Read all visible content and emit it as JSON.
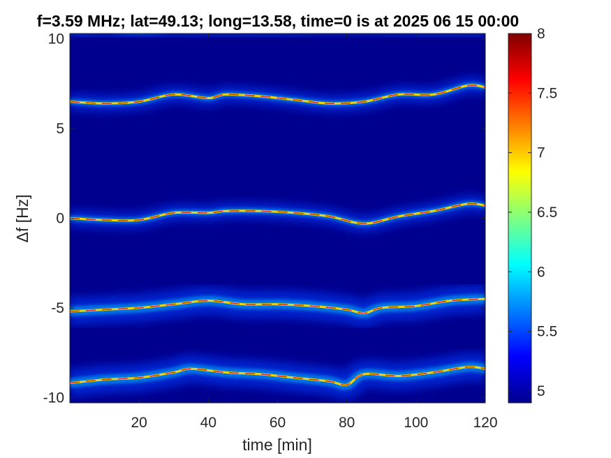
{
  "chart_data": {
    "type": "heatmap",
    "title": "f=3.59 MHz;  lat=49.13; long=13.58, time=0 is at 2025 06 15 00:00",
    "xlabel": "time [min]",
    "ylabel": "Δf [Hz]",
    "xlim": [
      0,
      120
    ],
    "ylim": [
      -10.3,
      10.3
    ],
    "xticks": [
      20,
      40,
      60,
      80,
      100,
      120
    ],
    "xtick_labels": [
      "20",
      "40",
      "60",
      "80",
      "100",
      "120"
    ],
    "yticks": [
      -10,
      -5,
      0,
      5,
      10
    ],
    "ytick_labels": [
      "-10",
      "-5",
      "0",
      "5",
      "10"
    ],
    "colorbar": {
      "colormap": "jet",
      "range": [
        4.9,
        8.0
      ],
      "ticks": [
        5,
        5.5,
        6,
        6.5,
        7,
        7.5,
        8
      ],
      "tick_labels": [
        "5",
        "5.5",
        "6",
        "6.5",
        "7",
        "7.5",
        "8"
      ]
    },
    "background_color": "#00008f",
    "traces": [
      {
        "name": "trace-upper",
        "points": [
          [
            0,
            6.5
          ],
          [
            10,
            6.4
          ],
          [
            20,
            6.5
          ],
          [
            30,
            6.9
          ],
          [
            40,
            6.7
          ],
          [
            45,
            6.9
          ],
          [
            55,
            6.8
          ],
          [
            65,
            6.6
          ],
          [
            75,
            6.4
          ],
          [
            85,
            6.5
          ],
          [
            95,
            6.9
          ],
          [
            105,
            6.9
          ],
          [
            115,
            7.4
          ],
          [
            120,
            7.3
          ]
        ]
      },
      {
        "name": "trace-middle",
        "points": [
          [
            0,
            0.0
          ],
          [
            10,
            -0.1
          ],
          [
            20,
            -0.1
          ],
          [
            30,
            0.3
          ],
          [
            40,
            0.3
          ],
          [
            45,
            0.4
          ],
          [
            55,
            0.4
          ],
          [
            65,
            0.3
          ],
          [
            75,
            0.1
          ],
          [
            85,
            -0.3
          ],
          [
            95,
            0.1
          ],
          [
            105,
            0.4
          ],
          [
            115,
            0.8
          ],
          [
            120,
            0.7
          ]
        ]
      },
      {
        "name": "trace-lower-1",
        "points": [
          [
            0,
            -5.2
          ],
          [
            10,
            -5.1
          ],
          [
            20,
            -5.0
          ],
          [
            30,
            -4.8
          ],
          [
            40,
            -4.6
          ],
          [
            50,
            -4.8
          ],
          [
            60,
            -4.8
          ],
          [
            70,
            -4.9
          ],
          [
            80,
            -5.1
          ],
          [
            85,
            -5.3
          ],
          [
            90,
            -5.0
          ],
          [
            100,
            -4.9
          ],
          [
            110,
            -4.6
          ],
          [
            120,
            -4.5
          ]
        ]
      },
      {
        "name": "trace-lower-2",
        "points": [
          [
            0,
            -9.2
          ],
          [
            10,
            -9.0
          ],
          [
            20,
            -8.9
          ],
          [
            30,
            -8.6
          ],
          [
            35,
            -8.4
          ],
          [
            45,
            -8.6
          ],
          [
            55,
            -8.7
          ],
          [
            65,
            -8.9
          ],
          [
            75,
            -9.1
          ],
          [
            80,
            -9.3
          ],
          [
            85,
            -8.7
          ],
          [
            95,
            -8.8
          ],
          [
            105,
            -8.6
          ],
          [
            115,
            -8.3
          ],
          [
            120,
            -8.4
          ]
        ]
      },
      {
        "name": "trace-top-edge",
        "points": [
          [
            0,
            10.5
          ],
          [
            10,
            10.6
          ],
          [
            20,
            10.4
          ],
          [
            30,
            10.6
          ],
          [
            40,
            10.6
          ],
          [
            60,
            10.6
          ],
          [
            80,
            10.7
          ],
          [
            100,
            10.6
          ],
          [
            120,
            10.6
          ]
        ]
      }
    ]
  }
}
